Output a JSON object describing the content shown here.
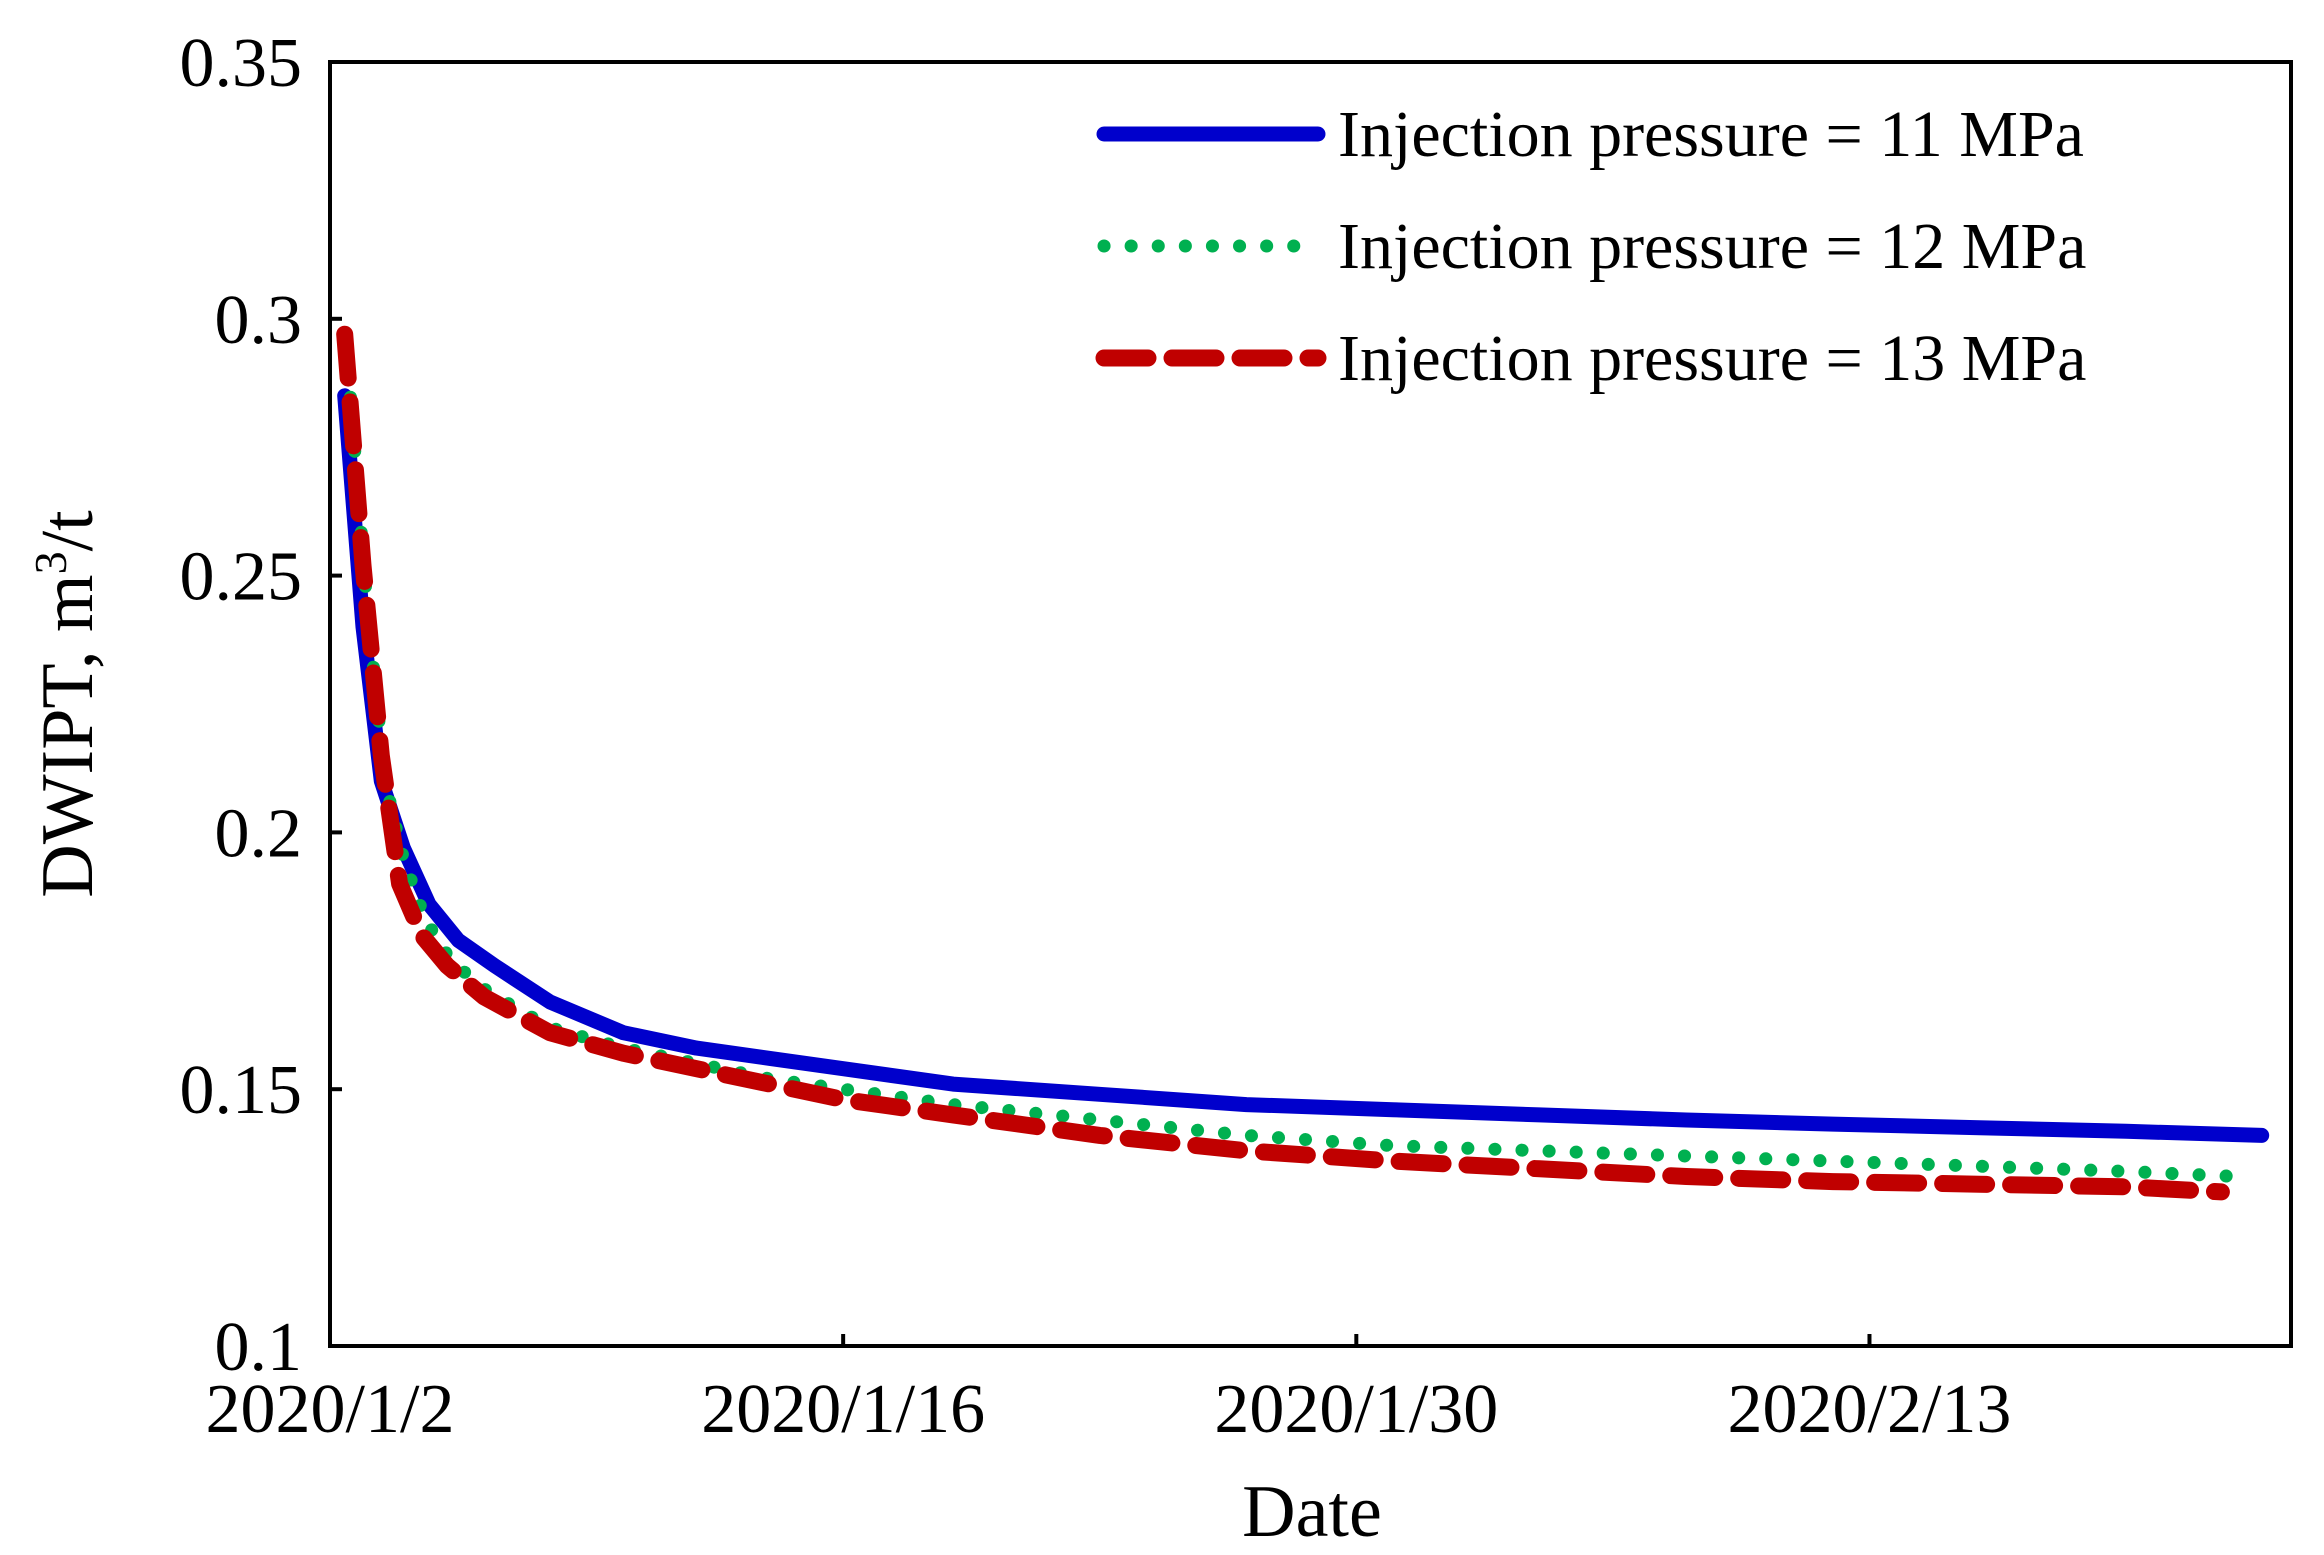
{
  "chart_data": {
    "type": "line",
    "title": "",
    "xlabel": "Date",
    "ylabel": "DWIPT, m",
    "ylabel_superscript": "3",
    "ylabel_suffix": "/t",
    "ylim": [
      0.1,
      0.35
    ],
    "yticks": [
      0.1,
      0.15,
      0.2,
      0.25,
      0.3,
      0.35
    ],
    "ytick_labels": [
      "0.1",
      "0.15",
      "0.2",
      "0.25",
      "0.3",
      "0.35"
    ],
    "xlim": [
      0,
      53.5
    ],
    "xticks": [
      0,
      14,
      28,
      42
    ],
    "xtick_labels": [
      "2020/1/2",
      "2020/1/16",
      "2020/1/30",
      "2020/2/13"
    ],
    "x_unit": "days since 2020/1/2",
    "legend_position": "top-right",
    "colors": {
      "series1": "#0000cc",
      "series2": "#00b050",
      "series3": "#c00000"
    },
    "series": [
      {
        "name": "Injection pressure = 11 MPa",
        "style": "solid",
        "color": "#0000cc",
        "x": [
          0.4,
          0.9,
          1.4,
          2.0,
          2.7,
          3.5,
          4.5,
          6,
          8,
          10,
          12,
          14,
          17,
          21,
          25,
          29,
          33,
          37,
          41,
          45,
          49,
          52.7
        ],
        "y": [
          0.285,
          0.24,
          0.21,
          0.197,
          0.186,
          0.179,
          0.174,
          0.167,
          0.161,
          0.158,
          0.156,
          0.154,
          0.151,
          0.149,
          0.147,
          0.146,
          0.145,
          0.144,
          0.1432,
          0.1425,
          0.1418,
          0.141
        ]
      },
      {
        "name": "Injection pressure = 12 MPa",
        "style": "dotted",
        "color": "#00b050",
        "x": [
          0.5,
          1.0,
          1.5,
          2.0,
          2.6,
          3.3,
          4.3,
          6,
          8,
          10,
          12,
          14,
          17,
          21,
          25,
          29,
          33,
          37,
          41,
          45,
          49,
          52
        ],
        "y": [
          0.29,
          0.245,
          0.21,
          0.195,
          0.183,
          0.175,
          0.169,
          0.162,
          0.158,
          0.155,
          0.152,
          0.15,
          0.147,
          0.144,
          0.141,
          0.139,
          0.138,
          0.137,
          0.136,
          0.135,
          0.134,
          0.133
        ]
      },
      {
        "name": "Injection pressure = 13 MPa",
        "style": "dashed",
        "color": "#c00000",
        "x": [
          0.4,
          0.9,
          1.4,
          1.9,
          2.5,
          3.2,
          4.2,
          6,
          8,
          10,
          12,
          14,
          17,
          21,
          25,
          29,
          33,
          37,
          41,
          45,
          49,
          51.6
        ],
        "y": [
          0.297,
          0.252,
          0.215,
          0.19,
          0.18,
          0.174,
          0.168,
          0.161,
          0.157,
          0.154,
          0.151,
          0.148,
          0.145,
          0.141,
          0.138,
          0.136,
          0.1345,
          0.133,
          0.132,
          0.1315,
          0.131,
          0.13
        ]
      }
    ]
  }
}
